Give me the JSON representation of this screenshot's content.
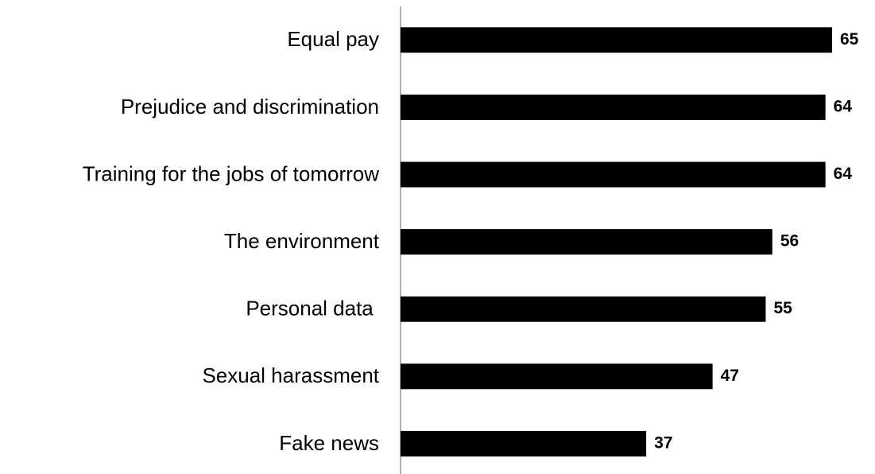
{
  "chart_data": {
    "type": "bar",
    "orientation": "horizontal",
    "categories": [
      "Equal pay",
      "Prejudice and discrimination",
      "Training for the jobs of tomorrow",
      "The environment",
      "Personal data ",
      "Sexual harassment",
      "Fake news"
    ],
    "values": [
      65,
      64,
      64,
      56,
      55,
      47,
      37
    ],
    "color": "#000000"
  }
}
